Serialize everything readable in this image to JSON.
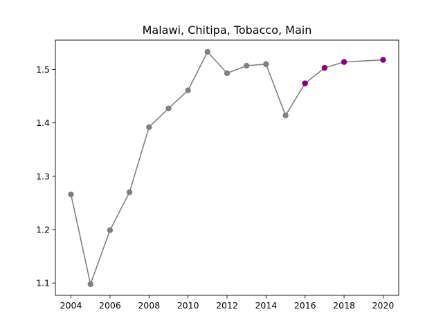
{
  "chart_data": {
    "type": "line",
    "title": "Malawi, Chitipa, Tobacco, Main",
    "xlabel": "",
    "ylabel": "",
    "xlim": [
      2003.2,
      2020.8
    ],
    "ylim": [
      1.077,
      1.555
    ],
    "x_ticks": [
      "2004",
      "2006",
      "2008",
      "2010",
      "2012",
      "2014",
      "2016",
      "2018",
      "2020"
    ],
    "x_tick_values": [
      2004,
      2006,
      2008,
      2010,
      2012,
      2014,
      2016,
      2018,
      2020
    ],
    "y_ticks": [
      "1.1",
      "1.2",
      "1.3",
      "1.4",
      "1.5"
    ],
    "y_tick_values": [
      1.1,
      1.2,
      1.3,
      1.4,
      1.5
    ],
    "grid": false,
    "line_color": "#808080",
    "series": [
      {
        "color": "#808080",
        "x": [
          2004,
          2005,
          2006,
          2007,
          2008,
          2009,
          2010,
          2011,
          2012,
          2013,
          2014,
          2015
        ],
        "y": [
          1.266,
          1.098,
          1.199,
          1.27,
          1.392,
          1.427,
          1.461,
          1.533,
          1.493,
          1.507,
          1.51,
          1.414
        ]
      },
      {
        "color": "#800080",
        "x": [
          2016,
          2017,
          2018,
          2020
        ],
        "y": [
          1.474,
          1.503,
          1.514,
          1.518
        ]
      }
    ]
  }
}
